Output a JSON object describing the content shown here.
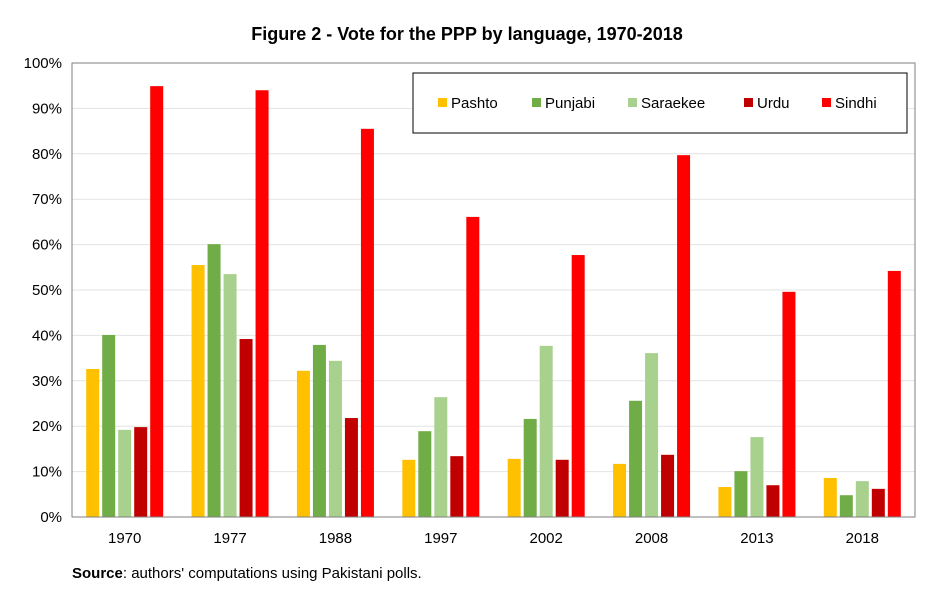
{
  "chart_data": {
    "type": "bar",
    "title": "Figure 2 - Vote for the PPP by language, 1970-2018",
    "xlabel": "",
    "ylabel": "",
    "ylim": [
      0,
      100
    ],
    "yticks": [
      "0%",
      "10%",
      "20%",
      "30%",
      "40%",
      "50%",
      "60%",
      "70%",
      "80%",
      "90%",
      "100%"
    ],
    "grid": true,
    "legend_position": "top-right",
    "categories": [
      "1970",
      "1977",
      "1988",
      "1997",
      "2002",
      "2008",
      "2013",
      "2018"
    ],
    "series": [
      {
        "name": "Pashto",
        "color": "#FFC000",
        "values": [
          32.6,
          55.5,
          32.2,
          12.6,
          12.8,
          11.7,
          6.6,
          8.6
        ]
      },
      {
        "name": "Punjabi",
        "color": "#70AD47",
        "values": [
          40.1,
          60.1,
          37.9,
          18.9,
          21.6,
          25.6,
          10.1,
          4.8
        ]
      },
      {
        "name": "Saraekee",
        "color": "#A9D18E",
        "values": [
          19.2,
          53.5,
          34.4,
          26.4,
          37.7,
          36.1,
          17.6,
          7.9
        ]
      },
      {
        "name": "Urdu",
        "color": "#C00000",
        "values": [
          19.8,
          39.2,
          21.8,
          13.4,
          12.6,
          13.7,
          7.0,
          6.2
        ]
      },
      {
        "name": "Sindhi",
        "color": "#FF0000",
        "values": [
          94.9,
          94.0,
          85.5,
          66.1,
          57.7,
          79.7,
          49.6,
          54.2
        ]
      }
    ]
  },
  "source": {
    "label": "Source",
    "text": ": authors' computations using Pakistani polls."
  }
}
